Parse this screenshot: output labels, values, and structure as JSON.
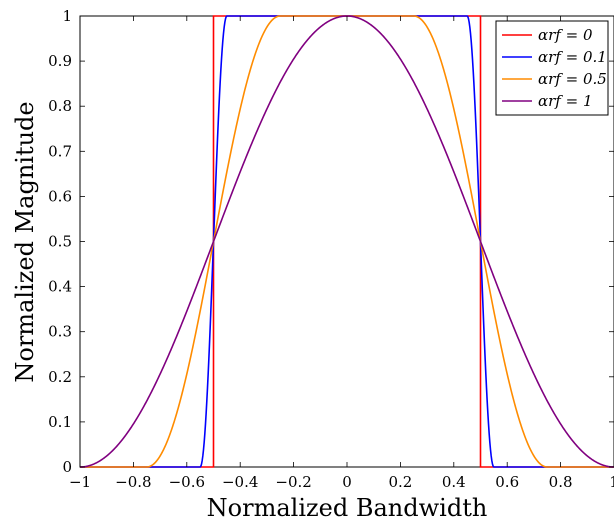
{
  "chart_data": {
    "type": "line",
    "title": "",
    "xlabel": "Normalized Bandwidth",
    "ylabel": "Normalized Magnitude",
    "xlim": [
      -1,
      1
    ],
    "ylim": [
      0,
      1
    ],
    "x_ticks": [
      -1,
      -0.8,
      -0.6,
      -0.4,
      -0.2,
      0,
      0.2,
      0.4,
      0.6,
      0.8,
      1
    ],
    "x_tick_labels": [
      "−1",
      "−0.8",
      "−0.6",
      "−0.4",
      "−0.2",
      "0",
      "0.2",
      "0.4",
      "0.6",
      "0.8",
      "1"
    ],
    "y_ticks": [
      0,
      0.1,
      0.2,
      0.3,
      0.4,
      0.5,
      0.6,
      0.7,
      0.8,
      0.9,
      1
    ],
    "y_tick_labels": [
      "0",
      "0.1",
      "0.2",
      "0.3",
      "0.4",
      "0.5",
      "0.6",
      "0.7",
      "0.8",
      "0.9",
      "1"
    ],
    "grid": false,
    "legend_position": "top-right",
    "series": [
      {
        "name": "α_rf = 0",
        "legend_label": "αrf = 0",
        "color": "#ff0000",
        "alpha": 0
      },
      {
        "name": "α_rf = 0.1",
        "legend_label": "αrf = 0.1",
        "color": "#0000ff",
        "alpha": 0.1
      },
      {
        "name": "α_rf = 0.5",
        "legend_label": "αrf = 0.5",
        "color": "#ff8c00",
        "alpha": 0.5
      },
      {
        "name": "α_rf = 1",
        "legend_label": "αrf = 1",
        "color": "#800080",
        "alpha": 1
      }
    ]
  }
}
